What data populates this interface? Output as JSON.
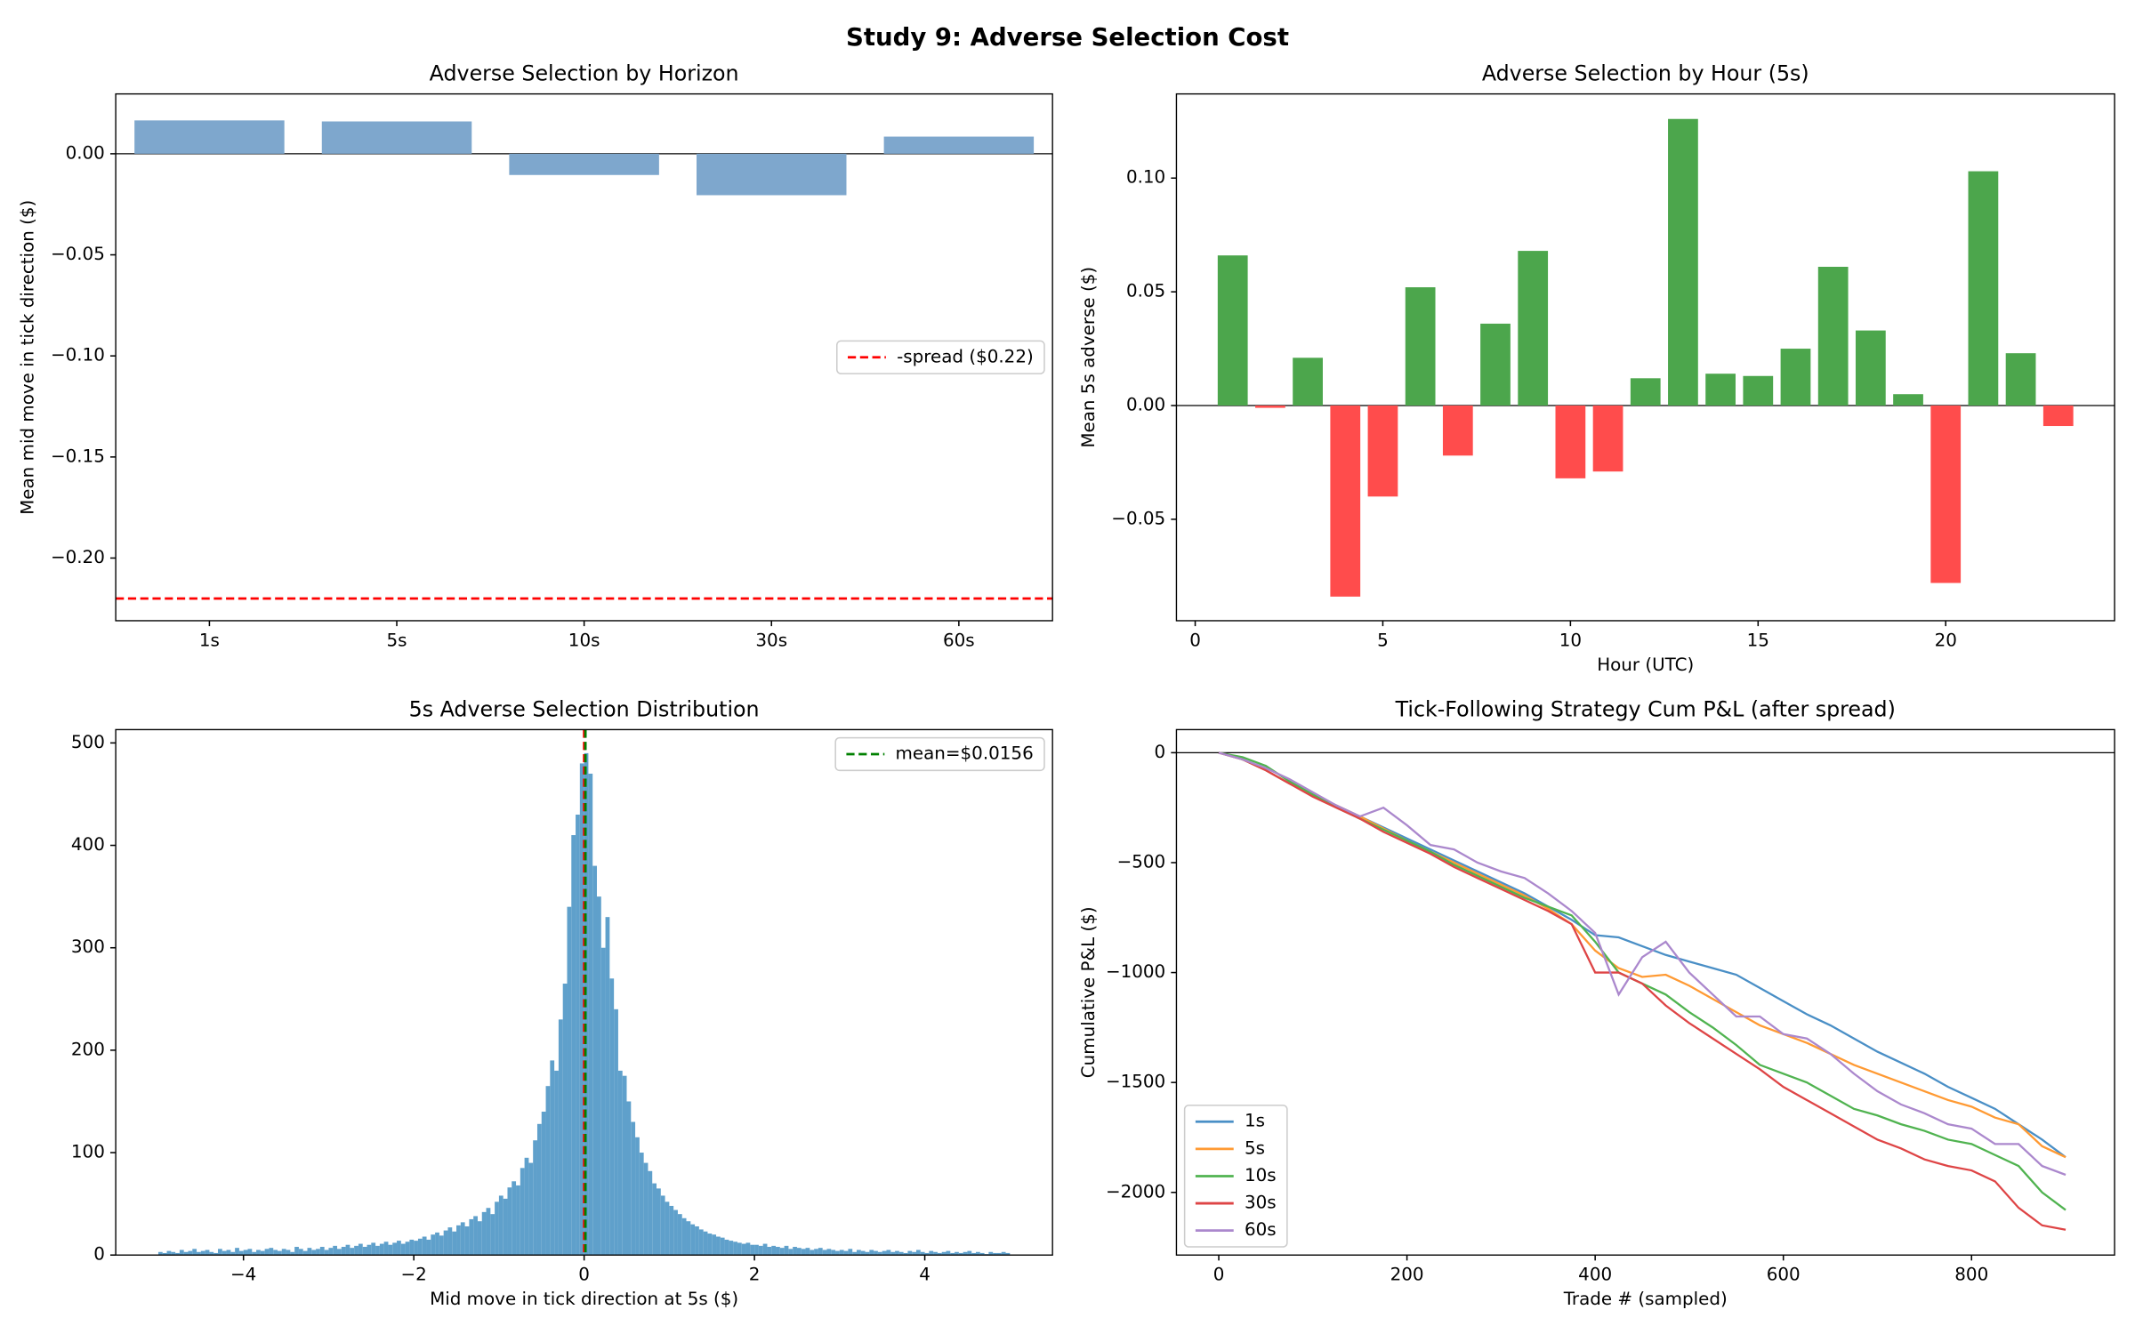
{
  "title": "Study 9: Adverse Selection Cost",
  "chart_data": [
    {
      "type": "bar",
      "title": "Adverse Selection by Horizon",
      "ylabel": "Mean mid move in tick direction ($)",
      "categories": [
        "1s",
        "5s",
        "10s",
        "30s",
        "60s"
      ],
      "values": [
        0.0165,
        0.016,
        -0.0105,
        -0.0205,
        0.0085
      ],
      "color": "#7ea7cd",
      "ylim": [
        -0.231,
        0.0296
      ],
      "yticks": [
        {
          "value": -0.2,
          "label": "−0.20"
        },
        {
          "value": -0.15,
          "label": "−0.15"
        },
        {
          "value": -0.1,
          "label": "−0.10"
        },
        {
          "value": -0.05,
          "label": "−0.05"
        },
        {
          "value": 0,
          "label": "0.00"
        }
      ],
      "zero_line": true,
      "reference_lines": [
        {
          "name": "-spread ($0.22)",
          "value": -0.22,
          "color": "#ff0000",
          "orientation": "h"
        }
      ],
      "legend": "center right"
    },
    {
      "type": "bar",
      "title": "Adverse Selection by Hour (5s)",
      "xlabel": "Hour (UTC)",
      "ylabel": "Mean 5s adverse ($)",
      "x": [
        1,
        2,
        3,
        4,
        5,
        6,
        7,
        8,
        9,
        10,
        11,
        12,
        13,
        14,
        15,
        16,
        17,
        18,
        19,
        20,
        21,
        22,
        23
      ],
      "values": [
        0.066,
        -0.001,
        0.021,
        -0.084,
        -0.04,
        0.052,
        -0.022,
        0.036,
        0.068,
        -0.032,
        -0.029,
        0.012,
        0.126,
        0.014,
        0.013,
        0.025,
        0.061,
        0.033,
        0.005,
        -0.078,
        0.103,
        0.023,
        -0.009
      ],
      "positive_color": "#4ca64c",
      "negative_color": "#ff4c4c",
      "xlim": [
        -0.5,
        24.5
      ],
      "xticks": [
        0,
        5,
        10,
        15,
        20
      ],
      "ylim": [
        -0.0946,
        0.137
      ],
      "yticks": [
        {
          "value": -0.05,
          "label": "−0.05"
        },
        {
          "value": 0,
          "label": "0.00"
        },
        {
          "value": 0.05,
          "label": "0.05"
        },
        {
          "value": 0.1,
          "label": "0.10"
        }
      ],
      "zero_line": true
    },
    {
      "type": "histogram",
      "title": "5s Adverse Selection Distribution",
      "xlabel": "Mid move in tick direction at 5s ($)",
      "bins": [
        -5,
        -4.95,
        -4.9,
        -4.85,
        -4.8,
        -4.75,
        -4.7,
        -4.65,
        -4.6,
        -4.55,
        -4.5,
        -4.45,
        -4.4,
        -4.35,
        -4.3,
        -4.25,
        -4.2,
        -4.15,
        -4.1,
        -4.05,
        -4,
        -3.95,
        -3.9,
        -3.85,
        -3.8,
        -3.75,
        -3.7,
        -3.65,
        -3.6,
        -3.55,
        -3.5,
        -3.45,
        -3.4,
        -3.35,
        -3.3,
        -3.25,
        -3.2,
        -3.15,
        -3.1,
        -3.05,
        -3,
        -2.95,
        -2.9,
        -2.85,
        -2.8,
        -2.75,
        -2.7,
        -2.65,
        -2.6,
        -2.55,
        -2.5,
        -2.45,
        -2.4,
        -2.35,
        -2.3,
        -2.25,
        -2.2,
        -2.15,
        -2.1,
        -2.05,
        -2,
        -1.95,
        -1.9,
        -1.85,
        -1.8,
        -1.75,
        -1.7,
        -1.65,
        -1.6,
        -1.55,
        -1.5,
        -1.45,
        -1.4,
        -1.35,
        -1.3,
        -1.25,
        -1.2,
        -1.15,
        -1.1,
        -1.05,
        -1,
        -0.95,
        -0.9,
        -0.85,
        -0.8,
        -0.75,
        -0.7,
        -0.65,
        -0.6,
        -0.55,
        -0.5,
        -0.45,
        -0.4,
        -0.35,
        -0.3,
        -0.25,
        -0.2,
        -0.15,
        -0.1,
        -0.05,
        0,
        0.05,
        0.1,
        0.15,
        0.2,
        0.25,
        0.3,
        0.35,
        0.4,
        0.45,
        0.5,
        0.55,
        0.6,
        0.65,
        0.7,
        0.75,
        0.8,
        0.85,
        0.9,
        0.95,
        1,
        1.05,
        1.1,
        1.15,
        1.2,
        1.25,
        1.3,
        1.35,
        1.4,
        1.45,
        1.5,
        1.55,
        1.6,
        1.65,
        1.7,
        1.75,
        1.8,
        1.85,
        1.9,
        1.95,
        2,
        2.05,
        2.1,
        2.15,
        2.2,
        2.25,
        2.3,
        2.35,
        2.4,
        2.45,
        2.5,
        2.55,
        2.6,
        2.65,
        2.7,
        2.75,
        2.8,
        2.85,
        2.9,
        2.95,
        3,
        3.05,
        3.1,
        3.15,
        3.2,
        3.25,
        3.3,
        3.35,
        3.4,
        3.45,
        3.5,
        3.55,
        3.6,
        3.65,
        3.7,
        3.75,
        3.8,
        3.85,
        3.9,
        3.95,
        4,
        4.05,
        4.1,
        4.15,
        4.2,
        4.25,
        4.3,
        4.35,
        4.4,
        4.45,
        4.5,
        4.55,
        4.6,
        4.65,
        4.7,
        4.75,
        4.8,
        4.85,
        4.9,
        4.95,
        5
      ],
      "counts": [
        3,
        2,
        4,
        3,
        2,
        5,
        3,
        4,
        6,
        3,
        4,
        5,
        3,
        2,
        6,
        4,
        5,
        3,
        7,
        4,
        5,
        6,
        3,
        5,
        4,
        6,
        7,
        5,
        4,
        6,
        5,
        3,
        8,
        6,
        4,
        7,
        5,
        6,
        8,
        5,
        7,
        9,
        6,
        8,
        10,
        7,
        9,
        11,
        8,
        10,
        12,
        9,
        11,
        13,
        10,
        12,
        14,
        11,
        13,
        15,
        14,
        16,
        18,
        15,
        20,
        22,
        19,
        24,
        27,
        23,
        29,
        32,
        28,
        35,
        38,
        33,
        42,
        46,
        40,
        52,
        58,
        55,
        66,
        72,
        68,
        85,
        95,
        90,
        112,
        128,
        140,
        165,
        190,
        180,
        230,
        265,
        340,
        410,
        430,
        480,
        490,
        470,
        380,
        350,
        300,
        330,
        270,
        240,
        180,
        175,
        150,
        130,
        115,
        100,
        90,
        82,
        70,
        65,
        58,
        52,
        48,
        44,
        40,
        36,
        33,
        30,
        28,
        25,
        23,
        21,
        20,
        18,
        17,
        15,
        14,
        13,
        12,
        11,
        12,
        10,
        10,
        9,
        11,
        8,
        9,
        8,
        7,
        9,
        6,
        8,
        7,
        6,
        7,
        5,
        6,
        7,
        5,
        6,
        5,
        4,
        5,
        4,
        6,
        3,
        5,
        4,
        3,
        5,
        4,
        3,
        4,
        5,
        3,
        4,
        3,
        2,
        4,
        3,
        5,
        3,
        2,
        4,
        3,
        2,
        3,
        4,
        2,
        3,
        2,
        3,
        4,
        2,
        3,
        2,
        1,
        3,
        2,
        2,
        3,
        2
      ],
      "color": "#5fa0cb",
      "xlim": [
        -5.5,
        5.5
      ],
      "xticks": [
        {
          "value": -4,
          "label": "−4"
        },
        {
          "value": -2,
          "label": "−2"
        },
        0,
        2,
        4
      ],
      "ylim": [
        0,
        513
      ],
      "yticks": [
        0,
        100,
        200,
        300,
        400,
        500
      ],
      "reference_lines": [
        {
          "value": 0,
          "color": "#ff0000",
          "orientation": "v"
        },
        {
          "name": "mean=$0.0156",
          "value": 0.0156,
          "color": "#008000",
          "orientation": "v"
        }
      ],
      "legend": "upper right"
    },
    {
      "type": "line",
      "title": "Tick-Following Strategy Cum P&L (after spread)",
      "xlabel": "Trade # (sampled)",
      "ylabel": "Cumulative P&L ($)",
      "x": [
        0,
        25,
        50,
        75,
        100,
        125,
        150,
        175,
        200,
        225,
        250,
        275,
        300,
        325,
        350,
        375,
        400,
        425,
        450,
        475,
        500,
        525,
        550,
        575,
        600,
        625,
        650,
        675,
        700,
        725,
        750,
        775,
        800,
        825,
        850,
        875,
        900
      ],
      "series": [
        {
          "name": "1s",
          "color": "#4a8fc6",
          "values": [
            0,
            -30,
            -80,
            -140,
            -190,
            -240,
            -290,
            -340,
            -390,
            -440,
            -490,
            -540,
            -590,
            -640,
            -700,
            -760,
            -830,
            -840,
            -880,
            -920,
            -950,
            -980,
            -1010,
            -1070,
            -1130,
            -1190,
            -1240,
            -1300,
            -1360,
            -1410,
            -1460,
            -1520,
            -1570,
            -1620,
            -1690,
            -1760,
            -1840
          ]
        },
        {
          "name": "5s",
          "color": "#ff9a33",
          "values": [
            0,
            -30,
            -80,
            -140,
            -190,
            -240,
            -290,
            -345,
            -400,
            -450,
            -500,
            -550,
            -600,
            -650,
            -710,
            -780,
            -900,
            -980,
            -1020,
            -1010,
            -1060,
            -1120,
            -1180,
            -1240,
            -1280,
            -1320,
            -1370,
            -1420,
            -1460,
            -1500,
            -1540,
            -1580,
            -1610,
            -1660,
            -1690,
            -1790,
            -1840
          ]
        },
        {
          "name": "10s",
          "color": "#50b350",
          "values": [
            0,
            -20,
            -60,
            -130,
            -190,
            -250,
            -300,
            -350,
            -400,
            -450,
            -510,
            -560,
            -610,
            -660,
            -700,
            -740,
            -860,
            -1000,
            -1050,
            -1100,
            -1180,
            -1250,
            -1330,
            -1420,
            -1460,
            -1500,
            -1560,
            -1620,
            -1650,
            -1690,
            -1720,
            -1760,
            -1780,
            -1830,
            -1880,
            -2000,
            -2080
          ]
        },
        {
          "name": "30s",
          "color": "#de4546",
          "values": [
            0,
            -30,
            -80,
            -140,
            -200,
            -250,
            -300,
            -360,
            -410,
            -460,
            -520,
            -570,
            -620,
            -670,
            -720,
            -780,
            -1000,
            -1000,
            -1050,
            -1150,
            -1230,
            -1300,
            -1370,
            -1440,
            -1520,
            -1580,
            -1640,
            -1700,
            -1760,
            -1800,
            -1850,
            -1880,
            -1900,
            -1950,
            -2070,
            -2150,
            -2170
          ]
        },
        {
          "name": "60s",
          "color": "#ab88cd",
          "values": [
            0,
            -30,
            -70,
            -120,
            -180,
            -240,
            -290,
            -250,
            -330,
            -420,
            -440,
            -500,
            -540,
            -570,
            -640,
            -720,
            -820,
            -1100,
            -930,
            -860,
            -1000,
            -1100,
            -1200,
            -1200,
            -1280,
            -1300,
            -1370,
            -1460,
            -1540,
            -1600,
            -1640,
            -1690,
            -1710,
            -1780,
            -1780,
            -1880,
            -1920
          ]
        }
      ],
      "xlim": [
        -45,
        952
      ],
      "xticks": [
        0,
        200,
        400,
        600,
        800
      ],
      "ylim": [
        -2285,
        105
      ],
      "yticks": [
        {
          "value": -2000,
          "label": "−2000"
        },
        {
          "value": -1500,
          "label": "−1500"
        },
        {
          "value": -1000,
          "label": "−1000"
        },
        {
          "value": -500,
          "label": "−500"
        },
        0
      ],
      "zero_line": true,
      "legend": "lower left"
    }
  ]
}
